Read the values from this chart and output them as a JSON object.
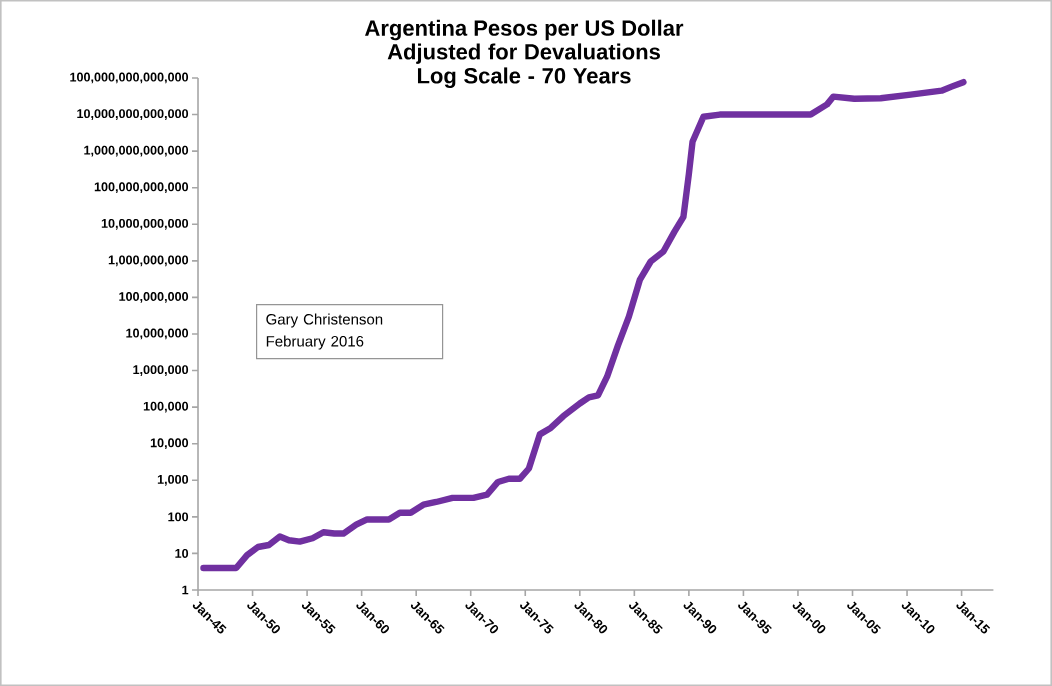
{
  "chart_data": {
    "type": "line",
    "title": "Argentina Pesos per US Dollar",
    "subtitle": "Adjusted for Devaluations Log Scale - 70 Years",
    "annotations": [
      "Gary Christenson",
      "February 2016"
    ],
    "x": [
      "1945-07",
      "1948-07",
      "1949-07",
      "1950-07",
      "1951-07",
      "1952-07",
      "1953-05",
      "1954-05",
      "1955-07",
      "1956-07",
      "1957-07",
      "1958-05",
      "1959-07",
      "1960-07",
      "1962-07",
      "1963-07",
      "1964-07",
      "1965-09",
      "1966-11",
      "1968-05",
      "1970-04",
      "1971-07",
      "1972-07",
      "1973-07",
      "1974-07",
      "1975-05",
      "1976-05",
      "1977-05",
      "1978-07",
      "1980-01",
      "1980-11",
      "1981-09",
      "1982-07",
      "1983-07",
      "1984-07",
      "1985-07",
      "1986-07",
      "1987-09",
      "1988-09",
      "1989-07",
      "1990-01",
      "1990-05",
      "1991-05",
      "1992-11",
      "2001-03",
      "2002-09",
      "2003-04",
      "2005-03",
      "2007-08",
      "2010-05",
      "2013-03",
      "2014-02",
      "2015-03"
    ],
    "values": [
      4,
      4,
      9,
      15,
      17,
      29,
      23,
      21,
      26,
      38,
      35,
      35,
      61,
      85,
      85,
      130,
      130,
      215,
      255,
      330,
      330,
      405,
      900,
      1100,
      1100,
      2100,
      18000,
      27000,
      57000,
      126000,
      185000,
      210000,
      680000,
      4900000,
      30000000,
      300000000,
      960000000,
      1800000000,
      6200000000,
      16000000000,
      240000000000,
      1800000000000,
      8700000000000,
      10000000000000,
      10000000000000,
      19000000000000,
      31000000000000,
      27000000000000,
      28000000000000,
      35000000000000,
      45000000000000,
      58000000000000,
      77000000000000
    ],
    "color": "#7030a0",
    "log": "y",
    "xlim": [
      "1945-01",
      "2017-12"
    ],
    "xticks": [
      {
        "value": "1945-01",
        "label": "Jan-45"
      },
      {
        "value": "1950-01",
        "label": "Jan-50"
      },
      {
        "value": "1955-01",
        "label": "Jan-55"
      },
      {
        "value": "1960-01",
        "label": "Jan-60"
      },
      {
        "value": "1965-01",
        "label": "Jan-65"
      },
      {
        "value": "1970-01",
        "label": "Jan-70"
      },
      {
        "value": "1975-01",
        "label": "Jan-75"
      },
      {
        "value": "1980-01",
        "label": "Jan-80"
      },
      {
        "value": "1985-01",
        "label": "Jan-85"
      },
      {
        "value": "1990-01",
        "label": "Jan-90"
      },
      {
        "value": "1995-01",
        "label": "Jan-95"
      },
      {
        "value": "2000-01",
        "label": "Jan-00"
      },
      {
        "value": "2005-01",
        "label": "Jan-05"
      },
      {
        "value": "2010-01",
        "label": "Jan-10"
      },
      {
        "value": "2015-01",
        "label": "Jan-15"
      }
    ],
    "ylim": [
      1,
      100000000000000
    ],
    "yticks": [
      1,
      10,
      100,
      {
        "value": 1000,
        "label": "1,000"
      },
      {
        "value": 10000,
        "label": "10,000"
      },
      {
        "value": 100000,
        "label": "100,000"
      },
      {
        "value": 1000000,
        "label": "1,000,000"
      },
      {
        "value": 10000000,
        "label": "10,000,000"
      },
      {
        "value": 100000000,
        "label": "100,000,000"
      },
      {
        "value": 1000000000,
        "label": "1,000,000,000"
      },
      {
        "value": 10000000000,
        "label": "10,000,000,000"
      },
      {
        "value": 100000000000,
        "label": "100,000,000,000"
      },
      {
        "value": 1000000000000,
        "label": "1,000,000,000,000"
      },
      {
        "value": 10000000000000,
        "label": "10,000,000,000,000"
      },
      {
        "value": 100000000000000,
        "label": "100,000,000,000,000"
      }
    ]
  }
}
